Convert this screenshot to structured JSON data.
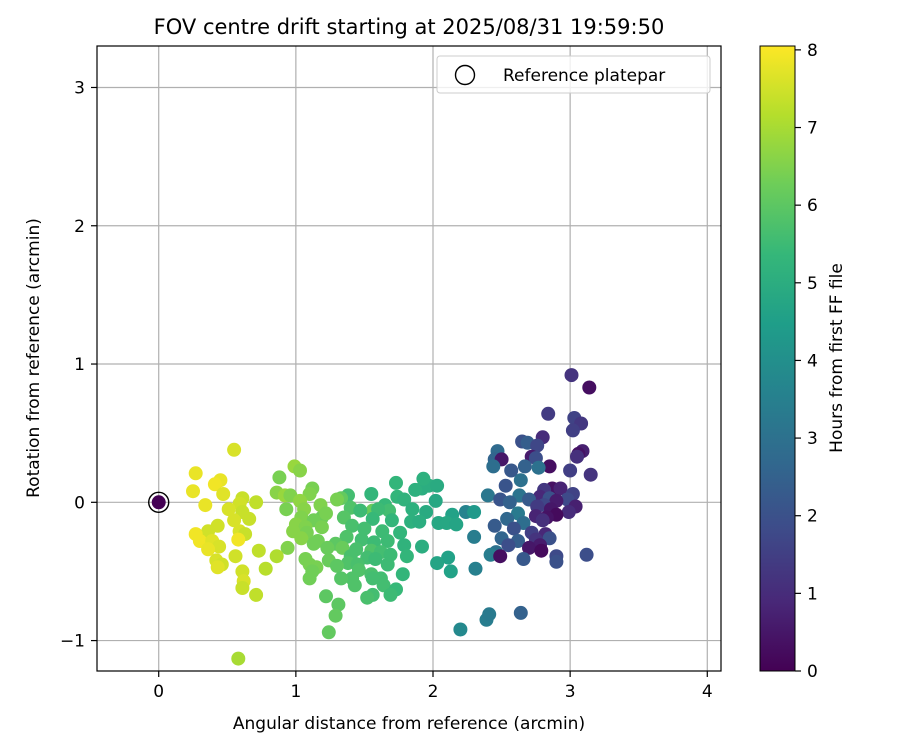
{
  "chart_data": {
    "type": "scatter",
    "title": "FOV centre drift starting at 2025/08/31 19:59:50",
    "xlabel": "Angular distance from reference (arcmin)",
    "ylabel": "Rotation from reference (arcmin)",
    "xlim": [
      -0.45,
      4.1
    ],
    "ylim": [
      -1.22,
      3.3
    ],
    "xticks": [
      0,
      1,
      2,
      3,
      4
    ],
    "xtick_labels": [
      "0",
      "1",
      "2",
      "3",
      "4"
    ],
    "yticks": [
      -1,
      0,
      1,
      2,
      3
    ],
    "ytick_labels": [
      "−1",
      "0",
      "1",
      "2",
      "3"
    ],
    "grid": true,
    "legend": {
      "position": "top-right",
      "entries": [
        "Reference platepar"
      ]
    },
    "reference_point": {
      "name": "Reference platepar",
      "x": 0,
      "y": 0,
      "c": 0
    },
    "colorbar": {
      "label": "Hours from first FF file",
      "min": 0,
      "max": 8.05,
      "ticks": [
        0,
        1,
        2,
        3,
        4,
        5,
        6,
        7,
        8
      ],
      "tick_labels": [
        "0",
        "1",
        "2",
        "3",
        "4",
        "5",
        "6",
        "7",
        "8"
      ],
      "colormap": "viridis",
      "colors": [
        "#440154",
        "#482878",
        "#3e4a89",
        "#31688e",
        "#26828e",
        "#1f9e89",
        "#35b779",
        "#6dcd59",
        "#b4de2c",
        "#fde725"
      ]
    },
    "points": [
      [
        3.01,
        0.92,
        1.2
      ],
      [
        3.14,
        0.83,
        0.3
      ],
      [
        2.84,
        0.64,
        1.4
      ],
      [
        3.03,
        0.61,
        1.6
      ],
      [
        3.08,
        0.57,
        1.3
      ],
      [
        3.02,
        0.52,
        1.5
      ],
      [
        2.8,
        0.47,
        1.0
      ],
      [
        2.65,
        0.44,
        2.0
      ],
      [
        2.69,
        0.43,
        2.4
      ],
      [
        2.76,
        0.41,
        1.7
      ],
      [
        3.09,
        0.37,
        0.7
      ],
      [
        2.47,
        0.37,
        2.8
      ],
      [
        3.06,
        0.35,
        0.4
      ],
      [
        2.72,
        0.33,
        0.6
      ],
      [
        2.75,
        0.32,
        1.9
      ],
      [
        3.05,
        0.33,
        1.1
      ],
      [
        2.45,
        0.31,
        2.6
      ],
      [
        2.5,
        0.31,
        0.5
      ],
      [
        2.44,
        0.26,
        2.9
      ],
      [
        2.85,
        0.26,
        0.3
      ],
      [
        2.67,
        0.26,
        2.5
      ],
      [
        2.77,
        0.25,
        3.0
      ],
      [
        2.57,
        0.23,
        2.2
      ],
      [
        3.0,
        0.23,
        1.5
      ],
      [
        3.15,
        0.2,
        1.2
      ],
      [
        2.64,
        0.16,
        3.0
      ],
      [
        2.53,
        0.12,
        2.1
      ],
      [
        2.87,
        0.1,
        0.4
      ],
      [
        2.93,
        0.1,
        0.8
      ],
      [
        2.81,
        0.09,
        1.3
      ],
      [
        3.02,
        0.06,
        1.6
      ],
      [
        2.63,
        0.05,
        3.1
      ],
      [
        2.4,
        0.05,
        3.2
      ],
      [
        2.78,
        0.04,
        0.9
      ],
      [
        2.85,
        0.03,
        2.0
      ],
      [
        2.7,
        0.02,
        2.3
      ],
      [
        2.49,
        0.02,
        2.1
      ],
      [
        2.98,
        0.02,
        1.8
      ],
      [
        2.9,
        0.01,
        0.6
      ],
      [
        2.56,
        0.0,
        2.5
      ],
      [
        2.81,
        -0.02,
        1.7
      ],
      [
        3.04,
        -0.03,
        0.7
      ],
      [
        2.76,
        -0.03,
        1.4
      ],
      [
        2.86,
        -0.05,
        0.5
      ],
      [
        2.99,
        -0.07,
        1.0
      ],
      [
        2.62,
        -0.08,
        3.3
      ],
      [
        2.24,
        -0.07,
        3.6
      ],
      [
        2.9,
        -0.09,
        0.2
      ],
      [
        2.75,
        -0.1,
        0.8
      ],
      [
        2.83,
        -0.11,
        0.4
      ],
      [
        2.54,
        -0.12,
        2.7
      ],
      [
        2.8,
        -0.13,
        1.1
      ],
      [
        2.66,
        -0.15,
        2.9
      ],
      [
        2.45,
        -0.17,
        2.3
      ],
      [
        2.59,
        -0.19,
        2.0
      ],
      [
        2.72,
        -0.22,
        1.5
      ],
      [
        2.82,
        -0.23,
        0.9
      ],
      [
        2.3,
        -0.25,
        3.4
      ],
      [
        2.5,
        -0.26,
        2.6
      ],
      [
        2.85,
        -0.26,
        2.0
      ],
      [
        2.75,
        -0.27,
        1.2
      ],
      [
        2.62,
        -0.28,
        2.4
      ],
      [
        2.78,
        -0.31,
        0.6
      ],
      [
        2.55,
        -0.31,
        1.9
      ],
      [
        2.7,
        -0.33,
        0.5
      ],
      [
        2.79,
        -0.35,
        0.2
      ],
      [
        2.46,
        -0.36,
        3.0
      ],
      [
        2.42,
        -0.38,
        3.4
      ],
      [
        2.49,
        -0.39,
        0.3
      ],
      [
        2.9,
        -0.39,
        1.8
      ],
      [
        3.12,
        -0.38,
        1.9
      ],
      [
        2.66,
        -0.41,
        2.2
      ],
      [
        2.9,
        -0.43,
        2.0
      ],
      [
        2.31,
        -0.48,
        3.5
      ],
      [
        2.39,
        -0.85,
        3.4
      ],
      [
        2.41,
        -0.81,
        3.3
      ],
      [
        2.64,
        -0.8,
        2.5
      ],
      [
        2.2,
        -0.92,
        3.8
      ],
      [
        1.97,
        0.12,
        5.0
      ],
      [
        2.03,
        0.12,
        4.9
      ],
      [
        1.92,
        0.1,
        5.0
      ],
      [
        1.73,
        0.14,
        5.3
      ],
      [
        1.87,
        0.09,
        5.1
      ],
      [
        1.93,
        0.17,
        5.1
      ],
      [
        1.55,
        0.06,
        5.3
      ],
      [
        1.38,
        0.05,
        5.6
      ],
      [
        1.74,
        0.04,
        5.3
      ],
      [
        1.65,
        -0.02,
        5.4
      ],
      [
        1.79,
        0.02,
        5.2
      ],
      [
        2.02,
        0.01,
        4.8
      ],
      [
        1.33,
        0.03,
        6.1
      ],
      [
        1.3,
        0.02,
        6.4
      ],
      [
        1.56,
        -0.06,
        6.2
      ],
      [
        1.68,
        -0.06,
        5.6
      ],
      [
        1.6,
        -0.05,
        5.5
      ],
      [
        1.85,
        -0.05,
        5.1
      ],
      [
        1.95,
        -0.07,
        4.9
      ],
      [
        2.14,
        -0.09,
        4.6
      ],
      [
        2.3,
        -0.07,
        4.3
      ],
      [
        1.4,
        -0.04,
        5.8
      ],
      [
        1.47,
        -0.06,
        5.5
      ],
      [
        1.19,
        -0.11,
        6.2
      ],
      [
        1.35,
        -0.11,
        5.9
      ],
      [
        1.56,
        -0.12,
        5.4
      ],
      [
        1.7,
        -0.13,
        5.3
      ],
      [
        1.84,
        -0.14,
        5.1
      ],
      [
        1.9,
        -0.14,
        5.0
      ],
      [
        2.04,
        -0.15,
        4.8
      ],
      [
        2.1,
        -0.15,
        4.8
      ],
      [
        2.17,
        -0.16,
        4.7
      ],
      [
        1.41,
        -0.17,
        5.7
      ],
      [
        1.5,
        -0.19,
        5.6
      ],
      [
        1.63,
        -0.21,
        5.5
      ],
      [
        1.76,
        -0.22,
        5.3
      ],
      [
        1.37,
        -0.25,
        5.8
      ],
      [
        1.48,
        -0.27,
        5.6
      ],
      [
        1.57,
        -0.29,
        5.5
      ],
      [
        1.67,
        -0.28,
        5.5
      ],
      [
        1.79,
        -0.31,
        5.2
      ],
      [
        1.92,
        -0.32,
        5.0
      ],
      [
        1.29,
        -0.3,
        6.0
      ],
      [
        1.34,
        -0.33,
        6.2
      ],
      [
        1.44,
        -0.34,
        5.7
      ],
      [
        1.55,
        -0.35,
        5.8
      ],
      [
        1.62,
        -0.36,
        5.6
      ],
      [
        1.69,
        -0.38,
        5.5
      ],
      [
        1.81,
        -0.39,
        5.3
      ],
      [
        1.4,
        -0.39,
        5.7
      ],
      [
        1.52,
        -0.4,
        5.6
      ],
      [
        1.58,
        -0.41,
        5.5
      ],
      [
        2.11,
        -0.4,
        4.6
      ],
      [
        2.03,
        -0.44,
        4.7
      ],
      [
        2.13,
        -0.5,
        4.6
      ],
      [
        1.38,
        -0.44,
        5.8
      ],
      [
        1.45,
        -0.45,
        5.7
      ],
      [
        1.67,
        -0.45,
        5.5
      ],
      [
        1.24,
        -0.42,
        6.2
      ],
      [
        1.3,
        -0.46,
        6.0
      ],
      [
        1.46,
        -0.49,
        5.8
      ],
      [
        1.55,
        -0.52,
        5.7
      ],
      [
        1.62,
        -0.55,
        5.6
      ],
      [
        1.41,
        -0.55,
        5.8
      ],
      [
        1.33,
        -0.55,
        5.9
      ],
      [
        1.78,
        -0.52,
        5.3
      ],
      [
        1.56,
        -0.55,
        5.6
      ],
      [
        1.64,
        -0.6,
        5.6
      ],
      [
        1.43,
        -0.6,
        5.8
      ],
      [
        1.73,
        -0.63,
        5.4
      ],
      [
        1.56,
        -0.67,
        5.6
      ],
      [
        1.52,
        -0.69,
        5.7
      ],
      [
        1.69,
        -0.67,
        5.5
      ],
      [
        1.22,
        -0.68,
        6.0
      ],
      [
        1.31,
        -0.74,
        6.0
      ],
      [
        1.29,
        -0.82,
        6.1
      ],
      [
        1.24,
        -0.94,
        6.1
      ],
      [
        0.99,
        0.26,
        6.8
      ],
      [
        1.03,
        0.23,
        6.6
      ],
      [
        0.88,
        0.18,
        6.4
      ],
      [
        1.12,
        0.1,
        6.4
      ],
      [
        1.1,
        0.06,
        6.5
      ],
      [
        0.86,
        0.07,
        6.6
      ],
      [
        0.92,
        0.05,
        6.8
      ],
      [
        0.96,
        0.05,
        6.5
      ],
      [
        1.03,
        0.01,
        6.7
      ],
      [
        1.18,
        -0.02,
        6.5
      ],
      [
        0.93,
        -0.05,
        6.4
      ],
      [
        1.06,
        -0.05,
        6.6
      ],
      [
        1.22,
        -0.08,
        6.4
      ],
      [
        1.04,
        -0.11,
        6.5
      ],
      [
        1.13,
        -0.13,
        6.3
      ],
      [
        1.0,
        -0.16,
        6.6
      ],
      [
        1.07,
        -0.18,
        6.5
      ],
      [
        1.19,
        -0.18,
        6.4
      ],
      [
        0.98,
        -0.21,
        6.6
      ],
      [
        1.08,
        -0.22,
        6.4
      ],
      [
        1.04,
        -0.26,
        6.6
      ],
      [
        1.16,
        -0.28,
        6.3
      ],
      [
        1.13,
        -0.3,
        6.3
      ],
      [
        0.94,
        -0.33,
        6.5
      ],
      [
        1.23,
        -0.33,
        6.2
      ],
      [
        1.07,
        -0.41,
        6.4
      ],
      [
        1.1,
        -0.45,
        6.4
      ],
      [
        1.15,
        -0.47,
        6.4
      ],
      [
        1.12,
        -0.5,
        6.3
      ],
      [
        1.1,
        -0.55,
        6.3
      ],
      [
        0.55,
        0.38,
        7.6
      ],
      [
        0.27,
        0.21,
        7.8
      ],
      [
        0.45,
        0.16,
        7.8
      ],
      [
        0.25,
        0.08,
        7.8
      ],
      [
        0.41,
        0.13,
        7.9
      ],
      [
        0.47,
        0.06,
        7.7
      ],
      [
        0.61,
        0.03,
        7.4
      ],
      [
        0.59,
        -0.01,
        7.5
      ],
      [
        0.71,
        0.0,
        7.3
      ],
      [
        0.34,
        -0.02,
        7.8
      ],
      [
        0.51,
        -0.05,
        7.6
      ],
      [
        0.61,
        -0.07,
        7.4
      ],
      [
        0.55,
        -0.13,
        7.6
      ],
      [
        0.66,
        -0.12,
        7.4
      ],
      [
        0.43,
        -0.17,
        7.5
      ],
      [
        0.36,
        -0.21,
        7.5
      ],
      [
        0.59,
        -0.21,
        7.6
      ],
      [
        0.63,
        -0.23,
        7.4
      ],
      [
        0.27,
        -0.23,
        7.9
      ],
      [
        0.58,
        -0.27,
        7.9
      ],
      [
        0.3,
        -0.28,
        7.9
      ],
      [
        0.39,
        -0.28,
        7.7
      ],
      [
        0.44,
        -0.32,
        7.6
      ],
      [
        0.36,
        -0.34,
        7.8
      ],
      [
        0.73,
        -0.35,
        7.3
      ],
      [
        0.86,
        -0.39,
        7.1
      ],
      [
        0.56,
        -0.39,
        7.5
      ],
      [
        0.42,
        -0.42,
        7.6
      ],
      [
        0.46,
        -0.45,
        7.5
      ],
      [
        0.43,
        -0.47,
        7.7
      ],
      [
        0.78,
        -0.48,
        7.2
      ],
      [
        0.61,
        -0.5,
        7.5
      ],
      [
        0.62,
        -0.57,
        7.6
      ],
      [
        0.61,
        -0.62,
        7.4
      ],
      [
        0.71,
        -0.67,
        7.3
      ],
      [
        0.58,
        -1.13,
        7.0
      ]
    ]
  }
}
